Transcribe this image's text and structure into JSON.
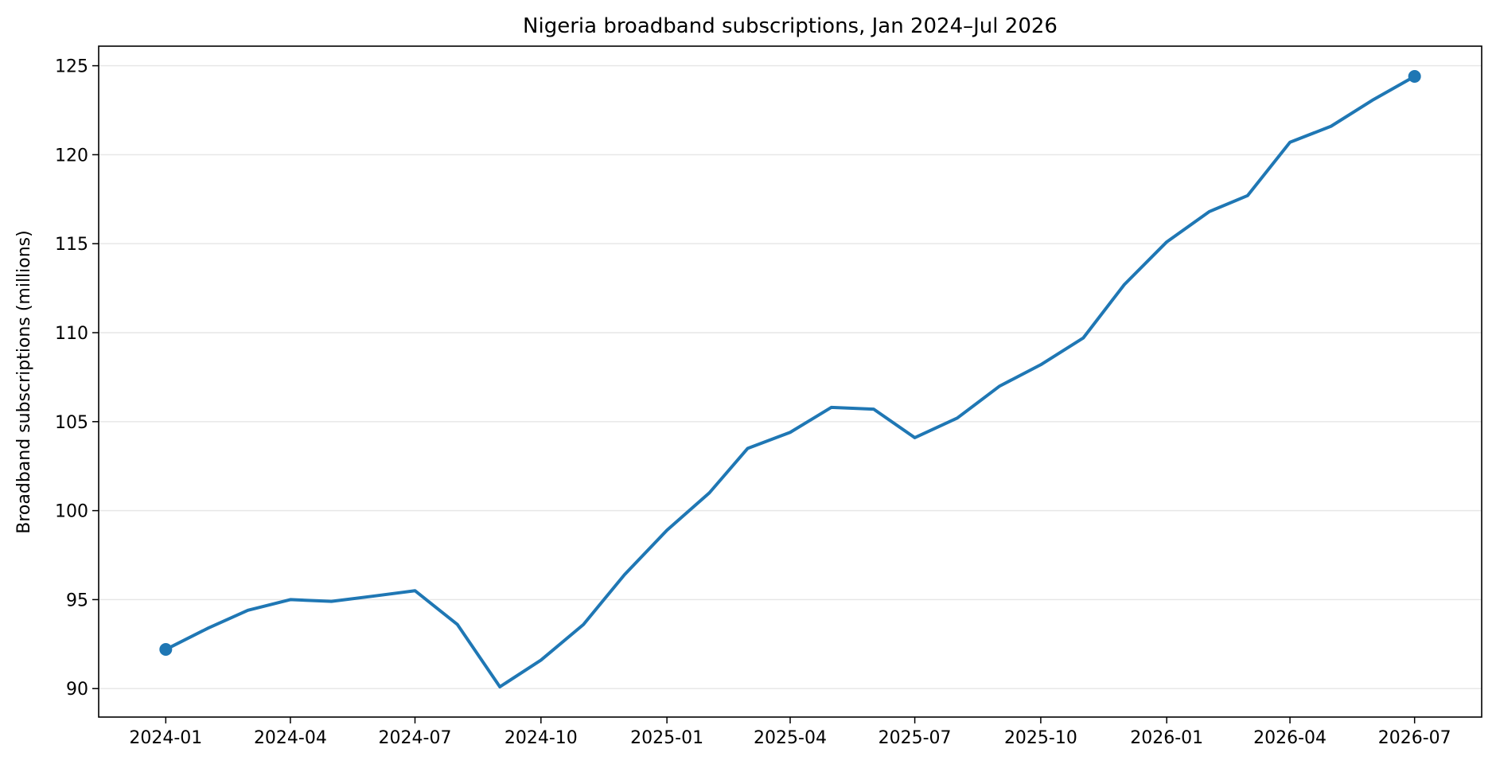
{
  "chart_data": {
    "type": "line",
    "title": "Nigeria broadband subscriptions, Jan 2024–Jul 2026",
    "xlabel": "",
    "ylabel": "Broadband subscriptions (millions)",
    "x": [
      "2024-01",
      "2024-02",
      "2024-03",
      "2024-04",
      "2024-05",
      "2024-06",
      "2024-07",
      "2024-08",
      "2024-09",
      "2024-10",
      "2024-11",
      "2024-12",
      "2025-01",
      "2025-02",
      "2025-03",
      "2025-04",
      "2025-05",
      "2025-06",
      "2025-07",
      "2025-08",
      "2025-09",
      "2025-10",
      "2025-11",
      "2025-12",
      "2026-01",
      "2026-02",
      "2026-03",
      "2026-04",
      "2026-05",
      "2026-06",
      "2026-07"
    ],
    "series": [
      {
        "values": [
          92.2,
          93.4,
          94.4,
          95.0,
          94.9,
          95.2,
          95.5,
          93.6,
          90.1,
          91.6,
          93.6,
          96.4,
          98.9,
          101.0,
          103.5,
          104.4,
          105.8,
          105.7,
          104.1,
          105.2,
          107.0,
          108.2,
          109.7,
          112.7,
          115.1,
          116.8,
          117.7,
          120.7,
          121.6,
          123.1,
          124.4
        ],
        "color": "#1f77b4",
        "markers": "first-and-last"
      }
    ],
    "xticks": [
      "2024-01",
      "2024-04",
      "2024-07",
      "2024-10",
      "2025-01",
      "2025-04",
      "2025-07",
      "2025-10",
      "2026-01",
      "2026-04",
      "2026-07"
    ],
    "yticks": [
      "90",
      "95",
      "100",
      "105",
      "110",
      "115",
      "120",
      "125"
    ],
    "xlim": [
      "2023-11-13",
      "2026-08-19"
    ],
    "ylim": [
      88.4,
      126.1
    ],
    "grid": "horizontal",
    "legend": "none"
  }
}
